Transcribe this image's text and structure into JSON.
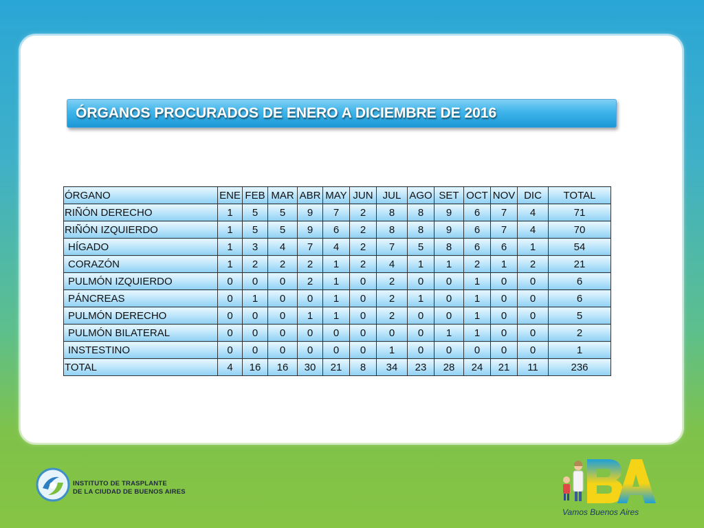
{
  "title": "ÓRGANOS PROCURADOS DE ENERO A DICIEMBRE DE 2016",
  "table": {
    "headers": [
      "ÓRGANO",
      "ENE",
      "FEB",
      "MAR",
      "ABR",
      "MAY",
      "JUN",
      "JUL",
      "AGO",
      "SET",
      "OCT",
      "NOV",
      "DIC",
      "TOTAL"
    ],
    "rows": [
      {
        "name": "RIÑÓN DERECHO",
        "values": [
          "1",
          "5",
          "5",
          "9",
          "7",
          "2",
          "8",
          "8",
          "9",
          "6",
          "7",
          "4",
          "71"
        ]
      },
      {
        "name": "RIÑÓN IZQUIERDO",
        "values": [
          "1",
          "5",
          "5",
          "9",
          "6",
          "2",
          "8",
          "8",
          "9",
          "6",
          "7",
          "4",
          "70"
        ]
      },
      {
        "name": "HÍGADO",
        "values": [
          "1",
          "3",
          "4",
          "7",
          "4",
          "2",
          "7",
          "5",
          "8",
          "6",
          "6",
          "1",
          "54"
        ]
      },
      {
        "name": "CORAZÓN",
        "values": [
          "1",
          "2",
          "2",
          "2",
          "1",
          "2",
          "4",
          "1",
          "1",
          "2",
          "1",
          "2",
          "21"
        ]
      },
      {
        "name": "PULMÓN IZQUIERDO",
        "values": [
          "0",
          "0",
          "0",
          "2",
          "1",
          "0",
          "2",
          "0",
          "0",
          "1",
          "0",
          "0",
          "6"
        ]
      },
      {
        "name": "PÁNCREAS",
        "values": [
          "0",
          "1",
          "0",
          "0",
          "1",
          "0",
          "2",
          "1",
          "0",
          "1",
          "0",
          "0",
          "6"
        ]
      },
      {
        "name": "PULMÓN DERECHO",
        "values": [
          "0",
          "0",
          "0",
          "1",
          "1",
          "0",
          "2",
          "0",
          "0",
          "1",
          "0",
          "0",
          "5"
        ]
      },
      {
        "name": "PULMÓN BILATERAL",
        "values": [
          "0",
          "0",
          "0",
          "0",
          "0",
          "0",
          "0",
          "0",
          "1",
          "1",
          "0",
          "0",
          "2"
        ]
      },
      {
        "name": "INSTESTINO",
        "values": [
          "0",
          "0",
          "0",
          "0",
          "0",
          "0",
          "1",
          "0",
          "0",
          "0",
          "0",
          "0",
          "1"
        ]
      },
      {
        "name": "TOTAL",
        "values": [
          "4",
          "16",
          "16",
          "30",
          "21",
          "8",
          "34",
          "23",
          "28",
          "24",
          "21",
          "11",
          "236"
        ]
      }
    ]
  },
  "footer": {
    "institute_line1": "INSTITUTO DE TRASPLANTE",
    "institute_line2": "DE LA CIUDAD DE BUENOS AIRES",
    "ba_caption": "Vamos Buenos Aires"
  },
  "colors": {
    "title_blue": "#2aa8e4",
    "cell_blue": "#b7e3fa",
    "bg_top": "#2aa6d6",
    "bg_bottom": "#86c443"
  }
}
